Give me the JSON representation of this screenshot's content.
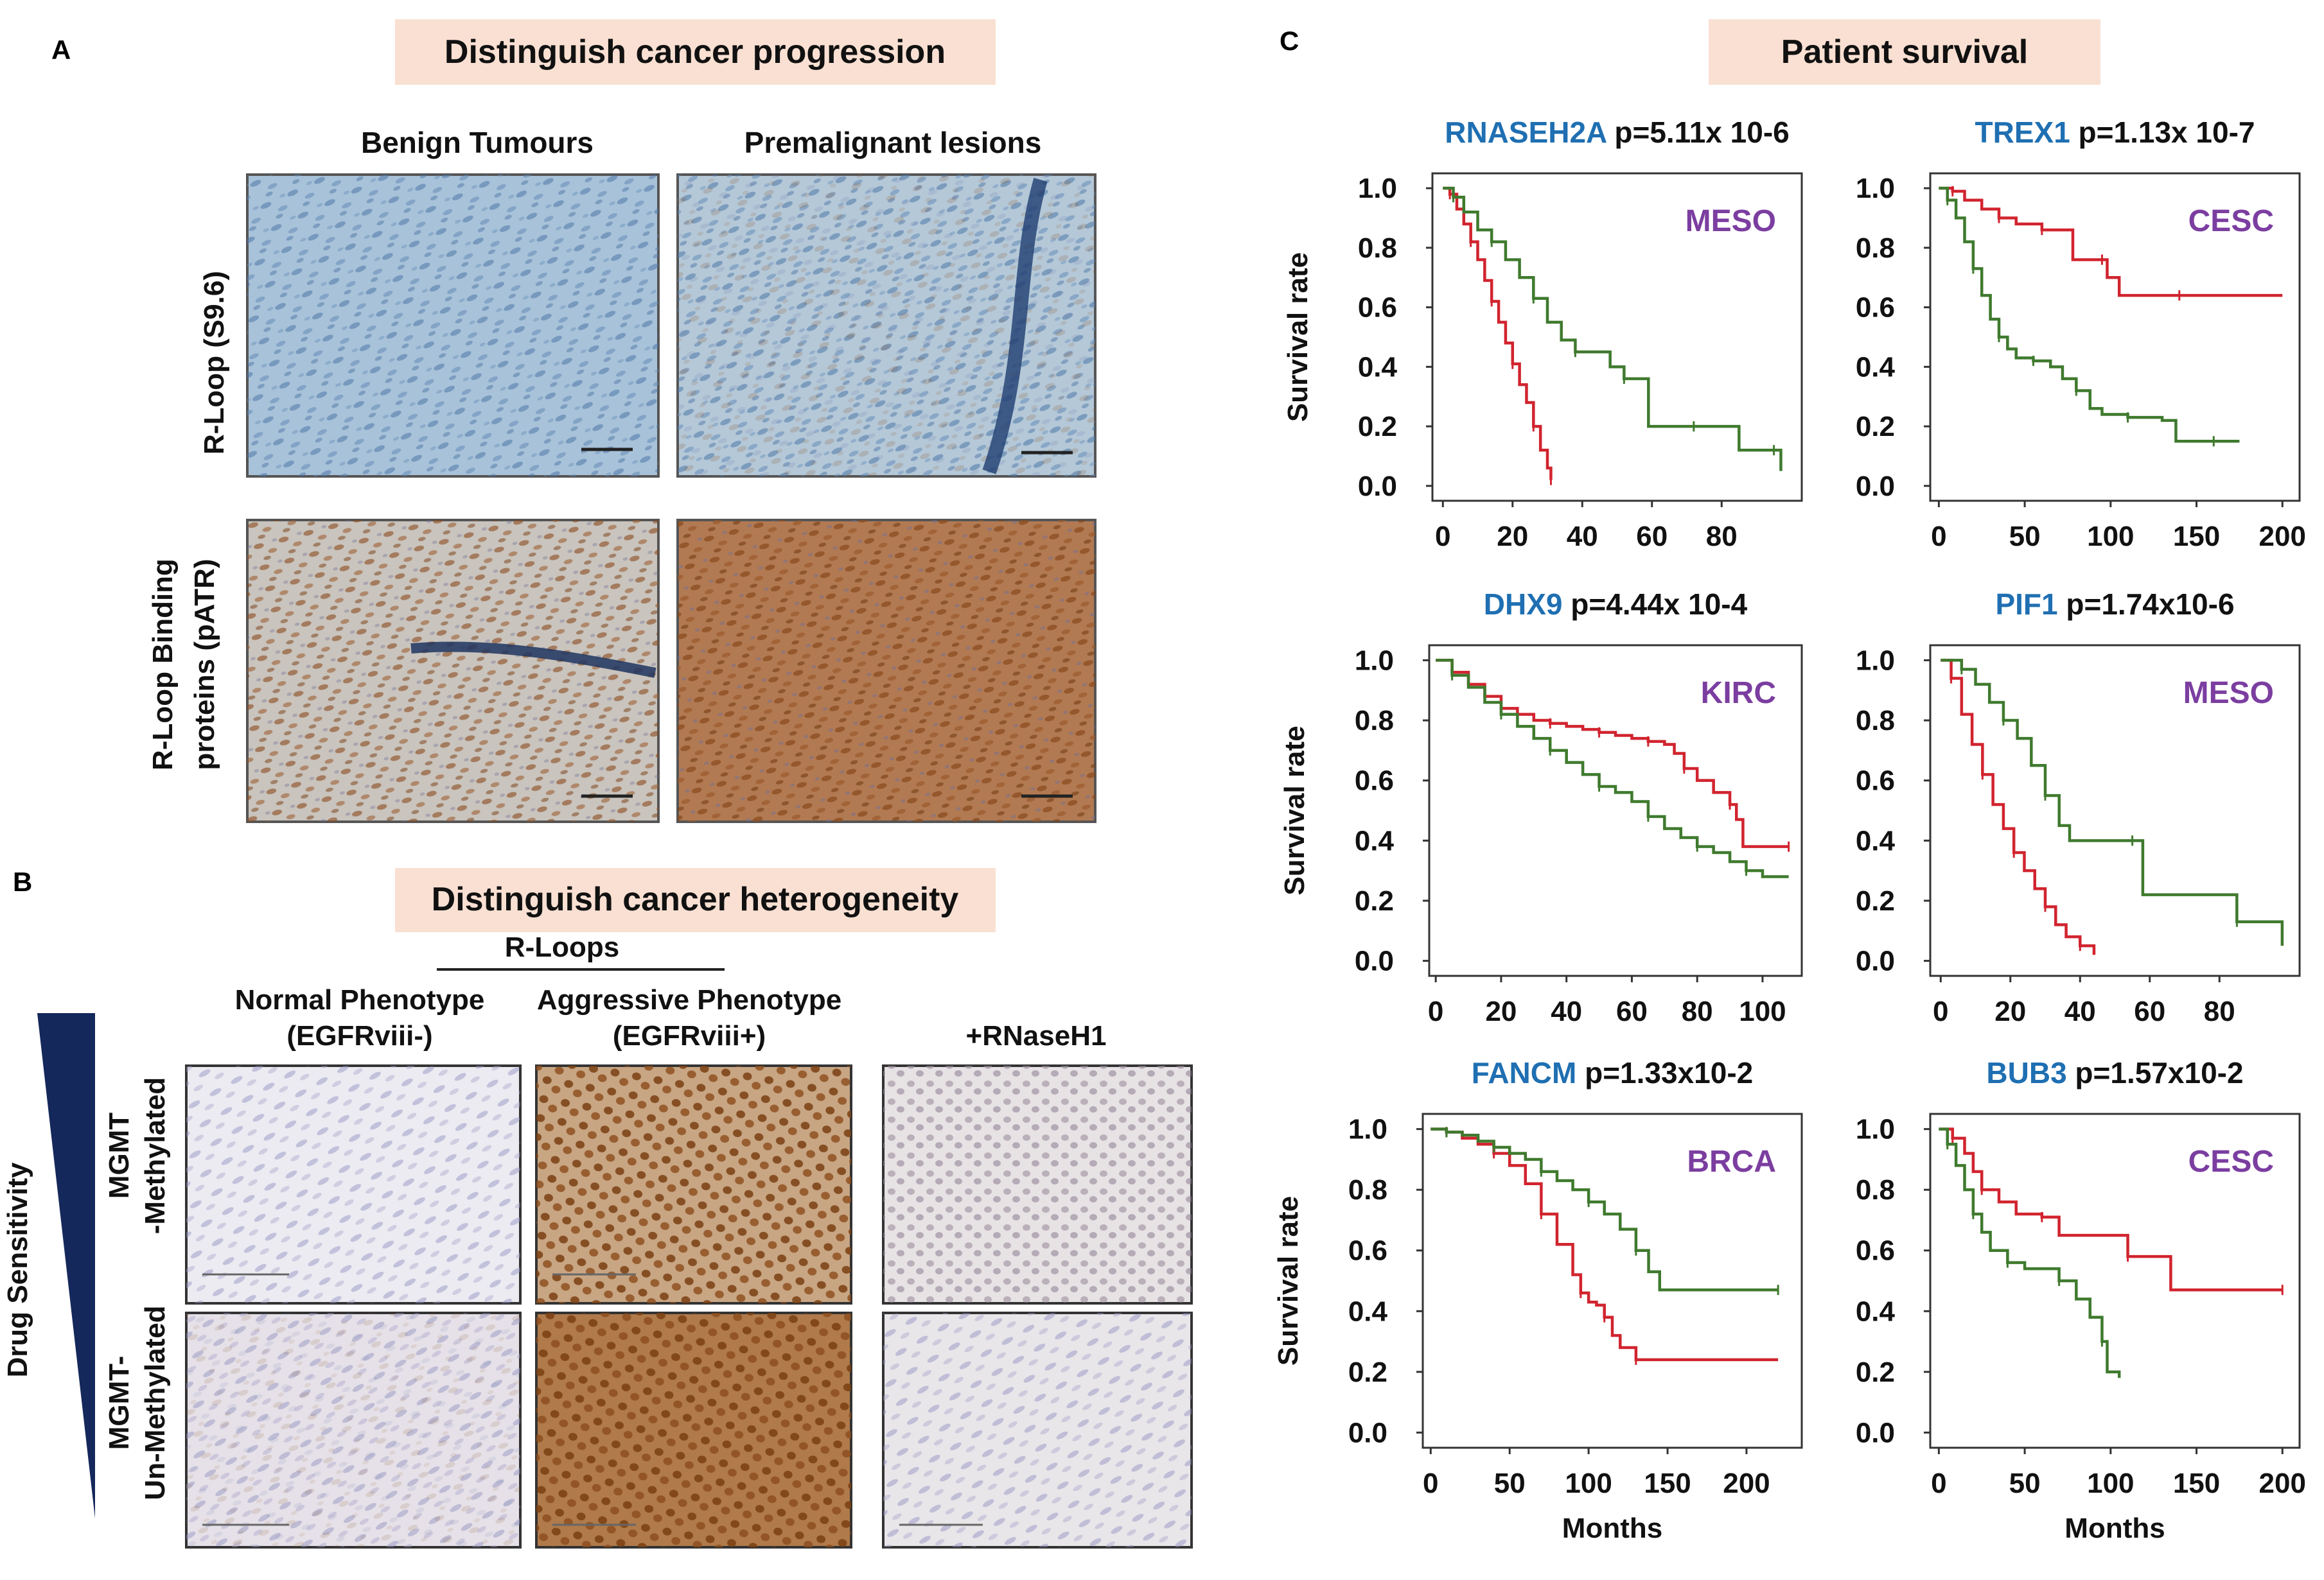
{
  "panel_a": {
    "letter": "A",
    "banner": "Distinguish cancer progression",
    "col_headers": [
      "Benign Tumours",
      "Premalignant lesions"
    ],
    "row_labels": [
      [
        "R-Loop (S9.6)"
      ],
      [
        "R-Loop Binding",
        "proteins (pATR)"
      ]
    ],
    "colors": {
      "banner_bg": "#f9e0d2",
      "stain_blue": "#a8c2d9",
      "stain_brown": "#b27a52"
    }
  },
  "panel_b": {
    "letter": "B",
    "banner": "Distinguish cancer heterogeneity",
    "group_header": "R-Loops",
    "col_headers": [
      [
        "Normal Phenotype",
        "(EGFRviii-)"
      ],
      [
        "Aggressive Phenotype",
        "(EGFRviii+)"
      ],
      [
        "+RNaseH1"
      ]
    ],
    "row_labels": [
      [
        "MGMT",
        "-Methylated"
      ],
      [
        "MGMT-",
        "Un-Methylated"
      ]
    ],
    "side_label": "Drug Sensitivity",
    "colors": {
      "wedge": "#15285c"
    }
  },
  "panel_c": {
    "letter": "C",
    "banner": "Patient survival",
    "colors": {
      "gene": "#1f6fb2",
      "cancer": "#7b3ea0",
      "high": "#d1242f",
      "low": "#3f7a2e"
    }
  },
  "chart_data": [
    {
      "type": "line",
      "gene": "RNASEH2A",
      "pvalue": "p=5.11x 10-6",
      "cancer": "MESO",
      "ylabel": "Survival rate",
      "xlabel": "",
      "xticks": [
        0,
        20,
        40,
        60,
        80
      ],
      "yticks": [
        "1.0",
        "0.8",
        "0.6",
        "0.4",
        "0.2",
        "0.0"
      ],
      "xlim": [
        -3,
        103
      ],
      "ylim": [
        -0.05,
        1.05
      ],
      "series": [
        {
          "color": "#d1242f",
          "points": [
            [
              0,
              1.0
            ],
            [
              2,
              0.98
            ],
            [
              4,
              0.93
            ],
            [
              6,
              0.88
            ],
            [
              8,
              0.82
            ],
            [
              10,
              0.76
            ],
            [
              12,
              0.69
            ],
            [
              14,
              0.62
            ],
            [
              16,
              0.55
            ],
            [
              18,
              0.48
            ],
            [
              20,
              0.41
            ],
            [
              22,
              0.34
            ],
            [
              24,
              0.28
            ],
            [
              26,
              0.2
            ],
            [
              28,
              0.12
            ],
            [
              30,
              0.06
            ],
            [
              31,
              0.02
            ]
          ]
        },
        {
          "color": "#3f7a2e",
          "points": [
            [
              0,
              1.0
            ],
            [
              3,
              0.97
            ],
            [
              6,
              0.92
            ],
            [
              10,
              0.86
            ],
            [
              14,
              0.82
            ],
            [
              18,
              0.76
            ],
            [
              22,
              0.7
            ],
            [
              26,
              0.63
            ],
            [
              30,
              0.55
            ],
            [
              34,
              0.49
            ],
            [
              38,
              0.45
            ],
            [
              44,
              0.45
            ],
            [
              48,
              0.4
            ],
            [
              52,
              0.36
            ],
            [
              58,
              0.36
            ],
            [
              59,
              0.2
            ],
            [
              72,
              0.2
            ],
            [
              82,
              0.2
            ],
            [
              85,
              0.12
            ],
            [
              95,
              0.12
            ],
            [
              97,
              0.05
            ]
          ]
        }
      ]
    },
    {
      "type": "line",
      "gene": "TREX1",
      "pvalue": "p=1.13x 10-7",
      "cancer": "CESC",
      "ylabel": "",
      "xlabel": "",
      "xticks": [
        0,
        50,
        100,
        150,
        200
      ],
      "yticks": [
        "1.0",
        "0.8",
        "0.6",
        "0.4",
        "0.2",
        "0.0"
      ],
      "xlim": [
        -5,
        210
      ],
      "ylim": [
        -0.05,
        1.05
      ],
      "series": [
        {
          "color": "#d1242f",
          "points": [
            [
              0,
              1.0
            ],
            [
              8,
              0.99
            ],
            [
              15,
              0.96
            ],
            [
              25,
              0.93
            ],
            [
              35,
              0.9
            ],
            [
              45,
              0.88
            ],
            [
              55,
              0.88
            ],
            [
              60,
              0.86
            ],
            [
              75,
              0.86
            ],
            [
              78,
              0.76
            ],
            [
              95,
              0.76
            ],
            [
              98,
              0.7
            ],
            [
              105,
              0.64
            ],
            [
              140,
              0.64
            ],
            [
              200,
              0.64
            ]
          ]
        },
        {
          "color": "#3f7a2e",
          "points": [
            [
              0,
              1.0
            ],
            [
              5,
              0.96
            ],
            [
              10,
              0.9
            ],
            [
              15,
              0.82
            ],
            [
              20,
              0.73
            ],
            [
              25,
              0.64
            ],
            [
              30,
              0.56
            ],
            [
              35,
              0.5
            ],
            [
              40,
              0.46
            ],
            [
              45,
              0.43
            ],
            [
              55,
              0.42
            ],
            [
              65,
              0.4
            ],
            [
              72,
              0.36
            ],
            [
              80,
              0.32
            ],
            [
              88,
              0.26
            ],
            [
              95,
              0.24
            ],
            [
              110,
              0.23
            ],
            [
              130,
              0.22
            ],
            [
              138,
              0.15
            ],
            [
              160,
              0.15
            ],
            [
              175,
              0.15
            ]
          ]
        }
      ]
    },
    {
      "type": "line",
      "gene": "DHX9",
      "pvalue": "p=4.44x 10-4",
      "cancer": "KIRC",
      "ylabel": "Survival rate",
      "xlabel": "",
      "xticks": [
        0,
        20,
        40,
        60,
        80,
        100
      ],
      "yticks": [
        "1.0",
        "0.8",
        "0.6",
        "0.4",
        "0.2",
        "0.0"
      ],
      "xlim": [
        -2,
        112
      ],
      "ylim": [
        -0.05,
        1.05
      ],
      "series": [
        {
          "color": "#d1242f",
          "points": [
            [
              0,
              1.0
            ],
            [
              5,
              0.96
            ],
            [
              10,
              0.92
            ],
            [
              15,
              0.88
            ],
            [
              20,
              0.84
            ],
            [
              25,
              0.82
            ],
            [
              30,
              0.8
            ],
            [
              35,
              0.79
            ],
            [
              40,
              0.78
            ],
            [
              45,
              0.77
            ],
            [
              50,
              0.76
            ],
            [
              55,
              0.75
            ],
            [
              60,
              0.74
            ],
            [
              65,
              0.73
            ],
            [
              70,
              0.72
            ],
            [
              73,
              0.69
            ],
            [
              76,
              0.64
            ],
            [
              80,
              0.6
            ],
            [
              85,
              0.56
            ],
            [
              90,
              0.52
            ],
            [
              92,
              0.47
            ],
            [
              94,
              0.38
            ],
            [
              108,
              0.38
            ]
          ]
        },
        {
          "color": "#3f7a2e",
          "points": [
            [
              0,
              1.0
            ],
            [
              5,
              0.95
            ],
            [
              10,
              0.91
            ],
            [
              15,
              0.86
            ],
            [
              20,
              0.82
            ],
            [
              25,
              0.78
            ],
            [
              30,
              0.74
            ],
            [
              35,
              0.7
            ],
            [
              40,
              0.66
            ],
            [
              45,
              0.62
            ],
            [
              50,
              0.58
            ],
            [
              55,
              0.56
            ],
            [
              60,
              0.53
            ],
            [
              65,
              0.48
            ],
            [
              70,
              0.44
            ],
            [
              75,
              0.41
            ],
            [
              80,
              0.38
            ],
            [
              85,
              0.36
            ],
            [
              90,
              0.33
            ],
            [
              95,
              0.3
            ],
            [
              100,
              0.28
            ],
            [
              108,
              0.28
            ]
          ]
        }
      ]
    },
    {
      "type": "line",
      "gene": "PIF1",
      "pvalue": "p=1.74x10-6",
      "cancer": "MESO",
      "ylabel": "",
      "xlabel": "",
      "xticks": [
        0,
        20,
        40,
        60,
        80
      ],
      "yticks": [
        "1.0",
        "0.8",
        "0.6",
        "0.4",
        "0.2",
        "0.0"
      ],
      "xlim": [
        -3,
        103
      ],
      "ylim": [
        -0.05,
        1.05
      ],
      "series": [
        {
          "color": "#d1242f",
          "points": [
            [
              0,
              1.0
            ],
            [
              3,
              0.94
            ],
            [
              6,
              0.82
            ],
            [
              9,
              0.72
            ],
            [
              12,
              0.62
            ],
            [
              15,
              0.52
            ],
            [
              18,
              0.44
            ],
            [
              21,
              0.36
            ],
            [
              24,
              0.3
            ],
            [
              27,
              0.24
            ],
            [
              30,
              0.18
            ],
            [
              33,
              0.12
            ],
            [
              36,
              0.08
            ],
            [
              40,
              0.05
            ],
            [
              44,
              0.02
            ]
          ]
        },
        {
          "color": "#3f7a2e",
          "points": [
            [
              0,
              1.0
            ],
            [
              6,
              0.97
            ],
            [
              10,
              0.92
            ],
            [
              14,
              0.86
            ],
            [
              18,
              0.8
            ],
            [
              22,
              0.74
            ],
            [
              26,
              0.65
            ],
            [
              30,
              0.55
            ],
            [
              34,
              0.45
            ],
            [
              37,
              0.4
            ],
            [
              55,
              0.4
            ],
            [
              58,
              0.22
            ],
            [
              80,
              0.22
            ],
            [
              85,
              0.13
            ],
            [
              96,
              0.13
            ],
            [
              98,
              0.05
            ]
          ]
        }
      ]
    },
    {
      "type": "line",
      "gene": "FANCM",
      "pvalue": "p=1.33x10-2",
      "cancer": "BRCA",
      "ylabel": "Survival rate",
      "xlabel": "Months",
      "xticks": [
        0,
        50,
        100,
        150,
        200
      ],
      "yticks": [
        "1.0",
        "0.8",
        "0.6",
        "0.4",
        "0.2",
        "0.0"
      ],
      "xlim": [
        -5,
        235
      ],
      "ylim": [
        -0.05,
        1.05
      ],
      "series": [
        {
          "color": "#d1242f",
          "points": [
            [
              0,
              1.0
            ],
            [
              10,
              0.99
            ],
            [
              20,
              0.97
            ],
            [
              30,
              0.95
            ],
            [
              40,
              0.92
            ],
            [
              50,
              0.88
            ],
            [
              60,
              0.82
            ],
            [
              70,
              0.72
            ],
            [
              80,
              0.62
            ],
            [
              90,
              0.52
            ],
            [
              95,
              0.46
            ],
            [
              100,
              0.43
            ],
            [
              105,
              0.42
            ],
            [
              110,
              0.38
            ],
            [
              115,
              0.32
            ],
            [
              120,
              0.28
            ],
            [
              130,
              0.24
            ],
            [
              150,
              0.24
            ],
            [
              220,
              0.24
            ]
          ]
        },
        {
          "color": "#3f7a2e",
          "points": [
            [
              0,
              1.0
            ],
            [
              10,
              0.99
            ],
            [
              20,
              0.98
            ],
            [
              30,
              0.96
            ],
            [
              40,
              0.94
            ],
            [
              50,
              0.92
            ],
            [
              60,
              0.9
            ],
            [
              70,
              0.86
            ],
            [
              80,
              0.83
            ],
            [
              90,
              0.8
            ],
            [
              100,
              0.76
            ],
            [
              110,
              0.72
            ],
            [
              120,
              0.67
            ],
            [
              130,
              0.6
            ],
            [
              138,
              0.53
            ],
            [
              145,
              0.47
            ],
            [
              220,
              0.47
            ]
          ]
        }
      ]
    },
    {
      "type": "line",
      "gene": "BUB3",
      "pvalue": "p=1.57x10-2",
      "cancer": "CESC",
      "ylabel": "",
      "xlabel": "Months",
      "xticks": [
        0,
        50,
        100,
        150,
        200
      ],
      "yticks": [
        "1.0",
        "0.8",
        "0.6",
        "0.4",
        "0.2",
        "0.0"
      ],
      "xlim": [
        -5,
        210
      ],
      "ylim": [
        -0.05,
        1.05
      ],
      "series": [
        {
          "color": "#d1242f",
          "points": [
            [
              0,
              1.0
            ],
            [
              8,
              0.97
            ],
            [
              15,
              0.92
            ],
            [
              20,
              0.86
            ],
            [
              25,
              0.8
            ],
            [
              35,
              0.76
            ],
            [
              45,
              0.72
            ],
            [
              60,
              0.71
            ],
            [
              70,
              0.65
            ],
            [
              100,
              0.65
            ],
            [
              110,
              0.58
            ],
            [
              125,
              0.58
            ],
            [
              135,
              0.47
            ],
            [
              200,
              0.47
            ]
          ]
        },
        {
          "color": "#3f7a2e",
          "points": [
            [
              0,
              1.0
            ],
            [
              5,
              0.95
            ],
            [
              10,
              0.88
            ],
            [
              15,
              0.8
            ],
            [
              20,
              0.72
            ],
            [
              25,
              0.66
            ],
            [
              30,
              0.6
            ],
            [
              40,
              0.56
            ],
            [
              50,
              0.54
            ],
            [
              65,
              0.54
            ],
            [
              70,
              0.5
            ],
            [
              80,
              0.44
            ],
            [
              88,
              0.38
            ],
            [
              95,
              0.3
            ],
            [
              98,
              0.2
            ],
            [
              105,
              0.18
            ]
          ]
        }
      ]
    }
  ]
}
